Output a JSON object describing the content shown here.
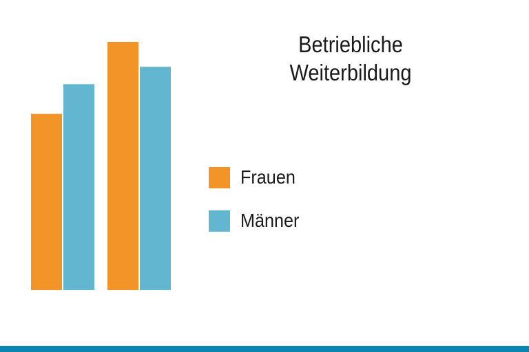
{
  "chart_data": {
    "type": "bar",
    "title": "Betriebliche Weiterbildung",
    "title_lines": [
      "Betriebliche",
      "Weiterbildung"
    ],
    "categories": [
      "",
      ""
    ],
    "series": [
      {
        "name": "Frauen",
        "color": "#f29427",
        "values": [
          71,
          100
        ]
      },
      {
        "name": "Männer",
        "color": "#63b6cf",
        "values": [
          83,
          90
        ]
      }
    ],
    "ylim": [
      0,
      100
    ],
    "axes_visible": false,
    "grid": false,
    "legend_placement": "right"
  },
  "footer_band_color": "#0a85b0"
}
